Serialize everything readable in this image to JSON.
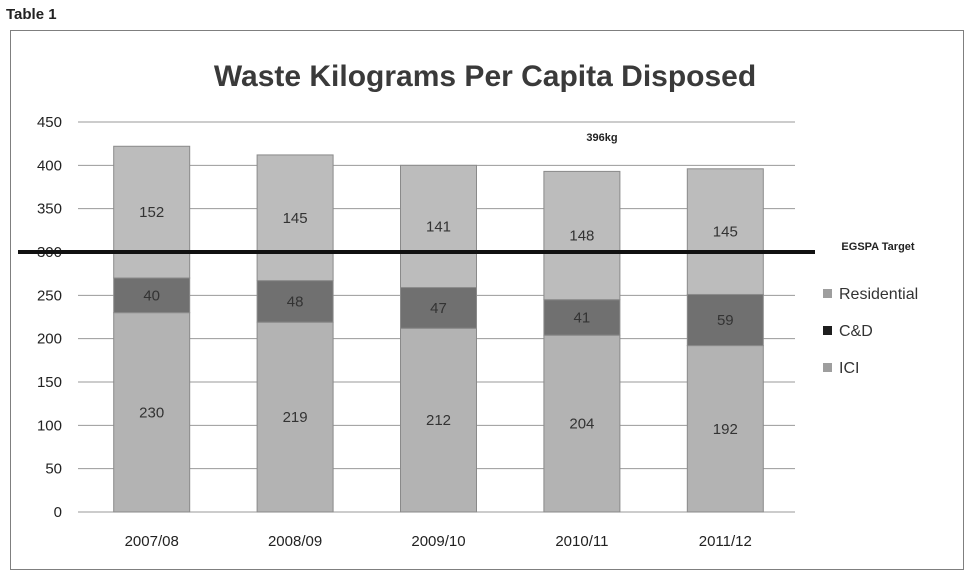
{
  "table_label": "Table 1",
  "chart_data": {
    "type": "bar",
    "stacked": true,
    "title": "Waste Kilograms Per Capita Disposed",
    "xlabel": "",
    "ylabel": "",
    "categories": [
      "2007/08",
      "2008/09",
      "2009/10",
      "2010/11",
      "2011/12"
    ],
    "series": [
      {
        "name": "ICI",
        "values": [
          230,
          219,
          212,
          204,
          192
        ],
        "color": "#b3b3b3"
      },
      {
        "name": "C&D",
        "values": [
          40,
          48,
          47,
          41,
          59
        ],
        "color": "#707070"
      },
      {
        "name": "Residential",
        "values": [
          152,
          145,
          141,
          148,
          145
        ],
        "color": "#bcbcbc"
      }
    ],
    "legend_order": [
      "Residential",
      "C&D",
      "ICI"
    ],
    "legend_colors": [
      "#9e9e9e",
      "#1e1e1e",
      "#9e9e9e"
    ],
    "legend_position": "right",
    "ylim": [
      0,
      450
    ],
    "yticks": [
      0,
      50,
      100,
      150,
      200,
      250,
      300,
      350,
      400,
      450
    ],
    "grid": true,
    "target": {
      "value": 300,
      "label": "EGSPA Target"
    },
    "annotation": "396kg"
  }
}
